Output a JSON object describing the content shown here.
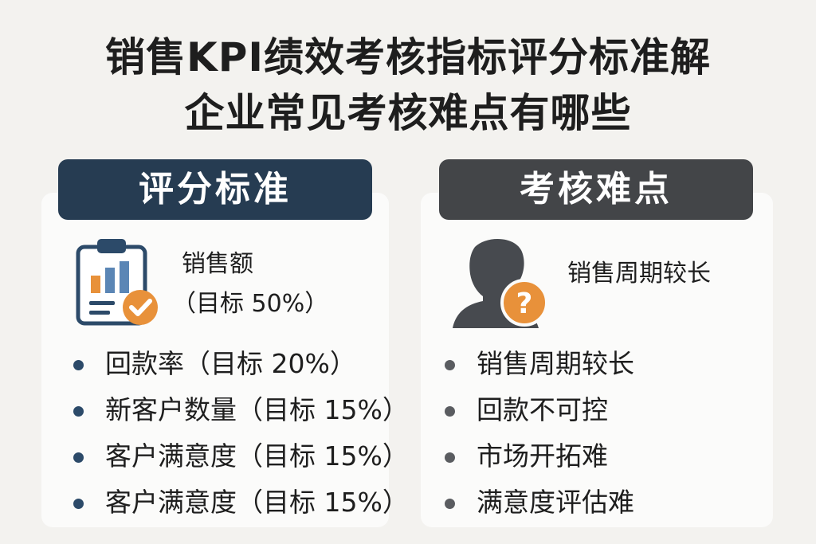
{
  "title": {
    "line1": "销售KPI绩效考核指标评分标准解",
    "line2": "企业常见考核难点有哪些"
  },
  "left_panel": {
    "header": "评分标准",
    "feature_icon": "clipboard-chart-check-icon",
    "feature_line1": "销售额",
    "feature_line2": "（目标 50%）",
    "items": [
      "回款率（目标 20%）",
      "新客户数量（目标 15%）",
      "客户满意度（目标 15%）",
      "客户满意度（目标 15%）"
    ]
  },
  "right_panel": {
    "header": "考核难点",
    "feature_icon": "person-question-icon",
    "feature_text": "销售周期较长",
    "items": [
      "销售周期较长",
      "回款不可控",
      "市场开拓难",
      "满意度评估难"
    ]
  },
  "colors": {
    "left_header": "#263c52",
    "right_header": "#434548",
    "accent_orange": "#e8913a",
    "accent_blue": "#5b86b5"
  }
}
